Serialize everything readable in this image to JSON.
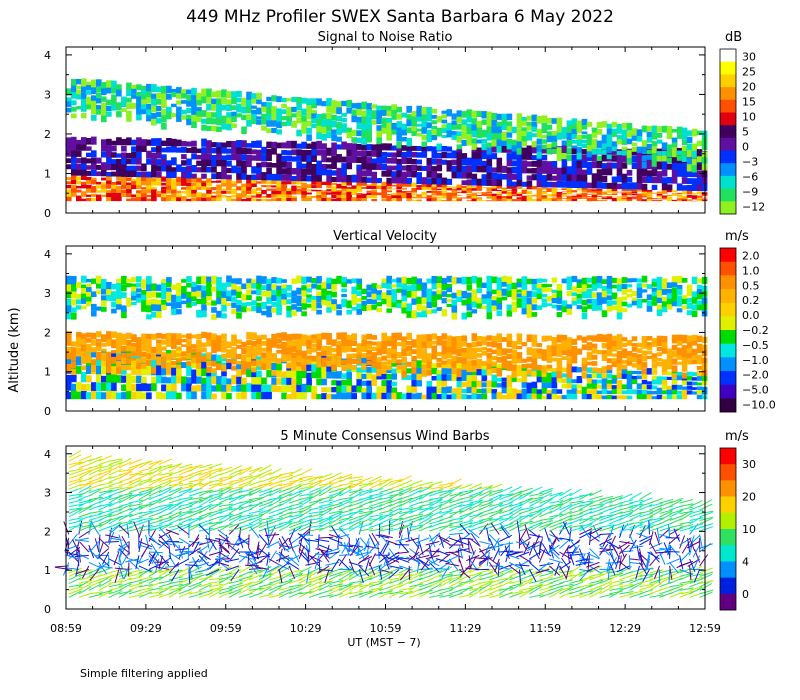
{
  "title": "449 MHz Profiler SWEX Santa Barbara  6 May 2022",
  "ylabel": "Altitude (km)",
  "xlabel": "UT  (MST − 7)",
  "footnote": "Simple filtering applied",
  "colors": {
    "frame": "#000000",
    "background": "#ffffff"
  },
  "chart_data": [
    {
      "type": "heatmap",
      "title": "Signal to Noise Ratio",
      "unit": "dB",
      "x_ticks": [
        "08:59",
        "09:29",
        "09:59",
        "10:29",
        "10:59",
        "11:29",
        "11:59",
        "12:29",
        "12:59"
      ],
      "xlim": [
        "08:59",
        "12:59"
      ],
      "y_ticks": [
        "0",
        "1",
        "2",
        "3",
        "4"
      ],
      "ylim": [
        0,
        4.2
      ],
      "colorbar": {
        "labels": [
          "30",
          "25",
          "20",
          "15",
          "10",
          "5",
          "0",
          "−3",
          "−6",
          "−9",
          "−12"
        ],
        "colors": [
          "#ffffff",
          "#ffff00",
          "#ffd000",
          "#ff9000",
          "#ff5000",
          "#e00010",
          "#400060",
          "#6010a0",
          "#0030ff",
          "#0090ff",
          "#00e0d0",
          "#20e060",
          "#90f020"
        ]
      },
      "layers": [
        {
          "name": "surface (red/orange)",
          "bottom": 0.3,
          "top_start": 0.95,
          "top_end": 0.55,
          "value": "10 to 20"
        },
        {
          "name": "lower purple/blue",
          "bottom_start": 0.95,
          "bottom_end": 0.55,
          "top_start": 1.9,
          "top_end": 1.6,
          "value": "−3 to 5"
        },
        {
          "name": "upper blue/green",
          "top_start": 3.4,
          "top_end": 2.1,
          "value": "−12 to −3"
        }
      ]
    },
    {
      "type": "heatmap",
      "title": "Vertical Velocity",
      "unit": "m/s",
      "x_ticks": [
        "08:59",
        "09:29",
        "09:59",
        "10:29",
        "10:59",
        "11:29",
        "11:59",
        "12:29",
        "12:59"
      ],
      "xlim": [
        "08:59",
        "12:59"
      ],
      "y_ticks": [
        "0",
        "1",
        "2",
        "3",
        "4"
      ],
      "ylim": [
        0,
        4.2
      ],
      "colorbar": {
        "labels": [
          "2.0",
          "1.0",
          "0.5",
          "0.2",
          "0.0",
          "−0.2",
          "−0.5",
          "−1.0",
          "−2.0",
          "−5.0",
          "−10.0"
        ],
        "colors": [
          "#ff0000",
          "#ff5000",
          "#ff9000",
          "#ffb000",
          "#ffd000",
          "#e0f000",
          "#00dc00",
          "#00e8e0",
          "#0090ff",
          "#0030ff",
          "#4000c0",
          "#300040"
        ]
      },
      "layers": [
        {
          "name": "mixed layer (blue/green)",
          "bottom": 0.3,
          "top_start": 1.6,
          "top_end": 1.0,
          "value": "−1.0 to 0.2"
        },
        {
          "name": "orange upper region",
          "top_start": 2.0,
          "top_end": 1.9,
          "value": "0.5 to 1.0"
        },
        {
          "name": "upper streaks",
          "top": 3.4,
          "value": "−1.0 to 0.5"
        }
      ]
    },
    {
      "type": "scatter",
      "title": "5 Minute Consensus Wind Barbs",
      "unit": "m/s",
      "x_ticks": [
        "08:59",
        "09:29",
        "09:59",
        "10:29",
        "10:59",
        "11:29",
        "11:59",
        "12:29",
        "12:59"
      ],
      "xlim": [
        "08:59",
        "12:59"
      ],
      "y_ticks": [
        "0",
        "1",
        "2",
        "3",
        "4"
      ],
      "ylim": [
        0,
        4.2
      ],
      "colorbar": {
        "labels": [
          "30",
          "20",
          "10",
          "4",
          "0"
        ],
        "colors": [
          "#ff0000",
          "#ff5000",
          "#ff9000",
          "#ffd000",
          "#b0f000",
          "#30e060",
          "#00e8d0",
          "#0090ff",
          "#0020e0",
          "#600080"
        ]
      },
      "barb_speed_by_height": {
        "0-1 km": "5 to 12",
        "1-2 km": "0 to 4",
        "2-3 km": "8 to 15",
        "3-4 km": "10 to 22"
      }
    }
  ]
}
